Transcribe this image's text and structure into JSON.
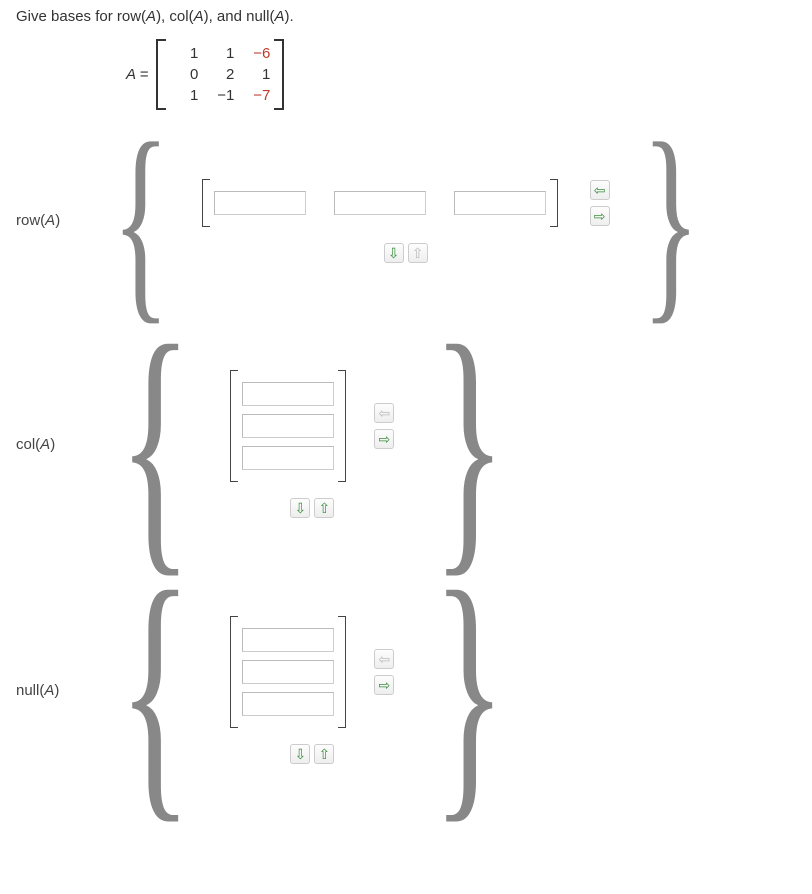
{
  "question": {
    "prefix": "Give bases for row(",
    "A1": "A",
    "mid1": "), col(",
    "A2": "A",
    "mid2": "), and null(",
    "A3": "A",
    "suffix": ")."
  },
  "matrix_label": "A =",
  "matrix": {
    "rows": [
      [
        {
          "v": "1"
        },
        {
          "v": "1"
        },
        {
          "v": "−6",
          "cls": "neg-red"
        }
      ],
      [
        {
          "v": "0"
        },
        {
          "v": "2"
        },
        {
          "v": "1"
        }
      ],
      [
        {
          "v": "1"
        },
        {
          "v": "−1"
        },
        {
          "v": "−7",
          "cls": "neg-red"
        }
      ]
    ]
  },
  "groups": {
    "row": {
      "label_pre": "row(",
      "label_A": "A",
      "label_post": ")"
    },
    "col": {
      "label_pre": "col(",
      "label_A": "A",
      "label_post": ")"
    },
    "null": {
      "label_pre": "null(",
      "label_A": "A",
      "label_post": ")"
    }
  },
  "glyphs": {
    "left_brace": "{",
    "right_brace": "}",
    "arrow_left": "⇦",
    "arrow_right": "⇨",
    "arrow_up": "⇧",
    "arrow_down": "⇩"
  },
  "colors": {
    "green": "#3e8e3e",
    "grey": "#bbbbbb",
    "neg_red": "#c0392b"
  }
}
